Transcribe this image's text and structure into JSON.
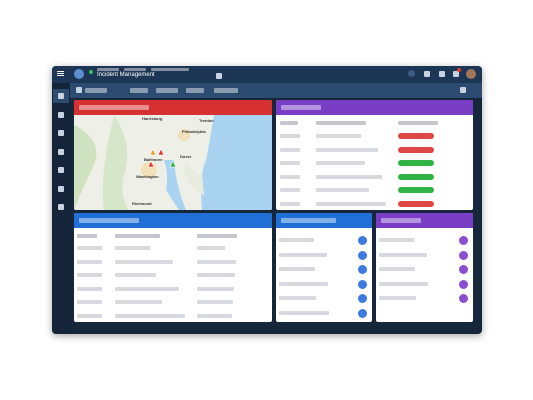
{
  "header": {
    "title": "Incident Management"
  },
  "map": {
    "labels": [
      "Harrisburg",
      "Trenton",
      "Philadelphia",
      "Baltimore",
      "Dover",
      "Washington",
      "Richmond"
    ]
  }
}
